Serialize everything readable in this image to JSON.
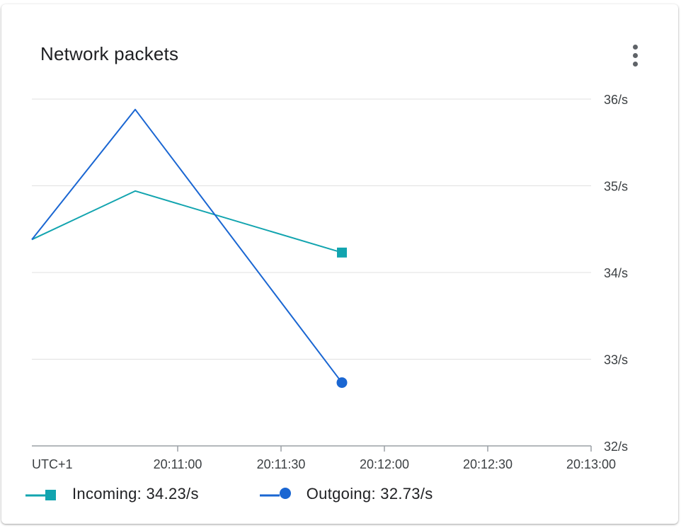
{
  "card": {
    "title": "Network packets",
    "menu_icon": "more-vert-icon"
  },
  "colors": {
    "incoming": "#12a4af",
    "outgoing": "#1a66d2",
    "grid": "#e0e0e0",
    "axis": "#9aa0a6",
    "text": "#3c4043"
  },
  "chart_data": {
    "type": "line",
    "x_tick_labels": [
      "UTC+1",
      "20:11:00",
      "20:11:30",
      "20:12:00",
      "20:12:30",
      "20:13:00"
    ],
    "y_tick_labels": [
      "32/s",
      "33/s",
      "34/s",
      "35/s",
      "36/s"
    ],
    "ylim": [
      32,
      36
    ],
    "grid": true,
    "legend_position": "bottom",
    "series": [
      {
        "name": "Incoming",
        "marker": "square",
        "x": [
          "20:10:30",
          "20:11:00",
          "20:12:00"
        ],
        "values": [
          34.38,
          34.94,
          34.23
        ]
      },
      {
        "name": "Outgoing",
        "marker": "circle",
        "x": [
          "20:10:30",
          "20:11:00",
          "20:12:00"
        ],
        "values": [
          34.38,
          35.88,
          32.73
        ]
      }
    ]
  },
  "legend": [
    {
      "label": "Incoming: 34.23/s",
      "marker": "square"
    },
    {
      "label": "Outgoing: 32.73/s",
      "marker": "circle"
    }
  ]
}
